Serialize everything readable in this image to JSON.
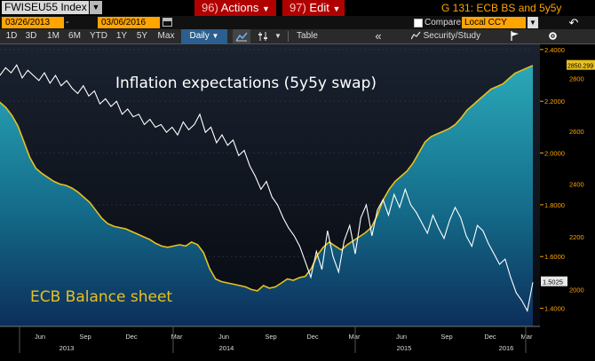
{
  "header": {
    "ticker": "FWISEU55 Index",
    "ticker_dropdown": "▼",
    "actions_label": "Actions",
    "actions_prefix": "96)",
    "edit_label": "Edit",
    "edit_prefix": "97)",
    "title": "G 131: ECB BS and 5y5y"
  },
  "toolbar_dates": {
    "start": "03/26/2013",
    "dash": "-",
    "end": "03/06/2016",
    "calendar_icon": "calendar-icon"
  },
  "compare": {
    "label": "Compare",
    "value": "Local CCY",
    "dropdown": "▼",
    "undo_icon": "↶"
  },
  "periods": [
    "1D",
    "3D",
    "1M",
    "6M",
    "YTD",
    "1Y",
    "5Y",
    "Max"
  ],
  "freq": {
    "label": "Daily",
    "arrow": "▼"
  },
  "tools": {
    "chart_type_icon": "line-chart-icon",
    "settings_icon": "settings-icon",
    "arrow": "▼",
    "table_label": "Table",
    "collapse_icon": "«",
    "security_study_label": "Security/Study",
    "flag_icon": "flag-icon",
    "options_icon": "gear-icon"
  },
  "chart_data": {
    "type": "line",
    "annotations": [
      "Inflation expectations (5y5y swap)",
      "ECB Balance sheet"
    ],
    "x_tick_labels": [
      "Jun",
      "Sep",
      "Dec",
      "Mar",
      "Jun",
      "Sep",
      "Dec",
      "Mar",
      "Jun",
      "Sep",
      "Dec",
      "Mar",
      "Jun",
      "Sep",
      "Dec",
      "Mar"
    ],
    "x_year_labels": [
      "2013",
      "2014",
      "2015",
      "2016"
    ],
    "right_axis_outer": {
      "ticks": [
        2.4,
        2.2,
        2.0,
        1.8,
        1.6,
        1.4
      ],
      "tick_labels": [
        "2.4000",
        "2.2000",
        "2.0000",
        "1.8000",
        "1.6000",
        "1.4000"
      ],
      "last_value_label": "1.5025",
      "range": [
        1.33,
        2.42
      ]
    },
    "right_axis_inner": {
      "ticks": [
        2800,
        2600,
        2400,
        2200,
        2000
      ],
      "tick_labels": [
        "2800",
        "2600",
        "2400",
        "2200",
        "2000"
      ],
      "last_value_label": "2850.299",
      "range": [
        1860,
        2930
      ]
    },
    "colors": {
      "swap_line": "#ffffff",
      "ecb_line": "#e8c020",
      "ecb_fill": "#1e9bb0",
      "background": "#0b0f16",
      "axis_text": "#ffa500"
    },
    "series": [
      {
        "name": "Inflation expectations (5y5y swap)",
        "axis": "outer",
        "values": [
          2.3,
          2.33,
          2.31,
          2.34,
          2.29,
          2.32,
          2.3,
          2.28,
          2.31,
          2.27,
          2.3,
          2.26,
          2.28,
          2.25,
          2.23,
          2.26,
          2.22,
          2.24,
          2.19,
          2.21,
          2.18,
          2.2,
          2.15,
          2.17,
          2.14,
          2.15,
          2.11,
          2.13,
          2.1,
          2.11,
          2.08,
          2.1,
          2.07,
          2.12,
          2.09,
          2.11,
          2.15,
          2.08,
          2.1,
          2.04,
          2.07,
          2.03,
          2.05,
          1.99,
          2.01,
          1.95,
          1.91,
          1.86,
          1.89,
          1.83,
          1.8,
          1.75,
          1.71,
          1.68,
          1.64,
          1.58,
          1.52,
          1.62,
          1.55,
          1.7,
          1.6,
          1.54,
          1.66,
          1.72,
          1.61,
          1.75,
          1.8,
          1.68,
          1.78,
          1.82,
          1.76,
          1.84,
          1.79,
          1.86,
          1.8,
          1.77,
          1.73,
          1.69,
          1.76,
          1.71,
          1.67,
          1.74,
          1.79,
          1.75,
          1.68,
          1.64,
          1.72,
          1.7,
          1.65,
          1.61,
          1.57,
          1.59,
          1.52,
          1.46,
          1.43,
          1.39,
          1.5
        ]
      },
      {
        "name": "ECB Balance sheet",
        "axis": "inner",
        "values": [
          2710,
          2690,
          2660,
          2620,
          2560,
          2500,
          2460,
          2440,
          2425,
          2410,
          2400,
          2395,
          2385,
          2370,
          2350,
          2330,
          2300,
          2270,
          2250,
          2240,
          2235,
          2230,
          2220,
          2210,
          2200,
          2190,
          2175,
          2165,
          2160,
          2165,
          2170,
          2165,
          2180,
          2170,
          2140,
          2080,
          2040,
          2030,
          2025,
          2020,
          2015,
          2010,
          2000,
          1995,
          2015,
          2005,
          2010,
          2025,
          2040,
          2035,
          2045,
          2050,
          2080,
          2130,
          2160,
          2180,
          2165,
          2150,
          2170,
          2185,
          2200,
          2215,
          2235,
          2280,
          2340,
          2380,
          2410,
          2430,
          2450,
          2480,
          2520,
          2560,
          2580,
          2590,
          2600,
          2610,
          2625,
          2650,
          2680,
          2700,
          2720,
          2740,
          2760,
          2770,
          2780,
          2800,
          2820,
          2830,
          2840,
          2850
        ]
      }
    ]
  }
}
